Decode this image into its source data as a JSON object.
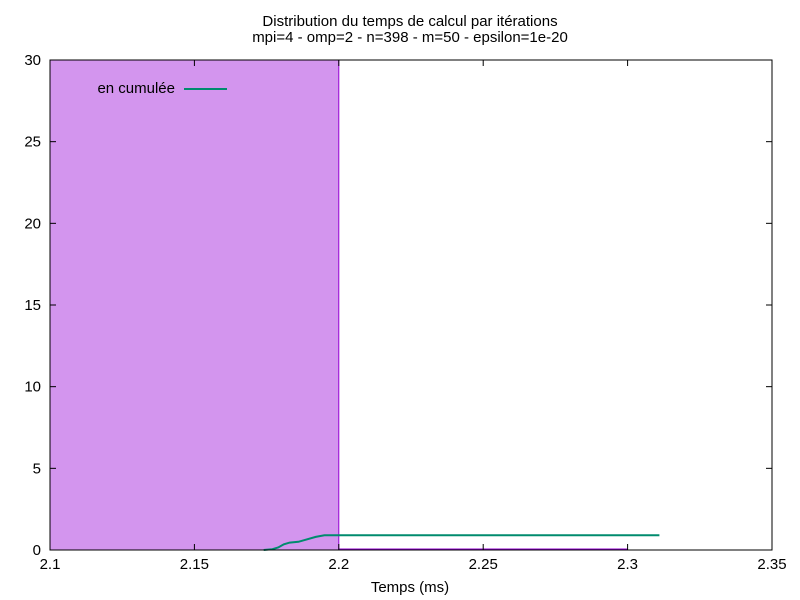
{
  "chart_data": {
    "type": "bar",
    "title": "Distribution du temps de calcul par itérations",
    "subtitle": "mpi=4 - omp=2 - n=398 - m=50 - epsilon=1e-20",
    "xlabel": "Temps (ms)",
    "ylabel": "",
    "xlim": [
      2.1,
      2.35
    ],
    "ylim": [
      0,
      30
    ],
    "xticks": [
      "2.1",
      "2.15",
      "2.2",
      "2.25",
      "2.3",
      "2.35"
    ],
    "yticks": [
      "0",
      "5",
      "10",
      "15",
      "20",
      "25",
      "30"
    ],
    "grid": false,
    "legend": {
      "position": "top-left",
      "entries": [
        {
          "label": "en cumulée",
          "color": "#008b6e"
        }
      ]
    },
    "series": [
      {
        "type": "bar",
        "color": "#d395ee",
        "edge_color": "#9400d3",
        "bins": [
          {
            "x0": 2.1,
            "x1": 2.2,
            "value": 30
          }
        ],
        "baseline_to": 2.3
      },
      {
        "name": "en cumulée",
        "type": "line",
        "color": "#008b6e",
        "x": [
          2.174,
          2.177,
          2.179,
          2.181,
          2.183,
          2.186,
          2.188,
          2.192,
          2.195,
          2.2,
          2.25,
          2.3,
          2.311
        ],
        "y": [
          0,
          0.05,
          0.15,
          0.35,
          0.45,
          0.5,
          0.6,
          0.8,
          0.9,
          0.9,
          0.9,
          0.9,
          0.9
        ]
      }
    ]
  }
}
